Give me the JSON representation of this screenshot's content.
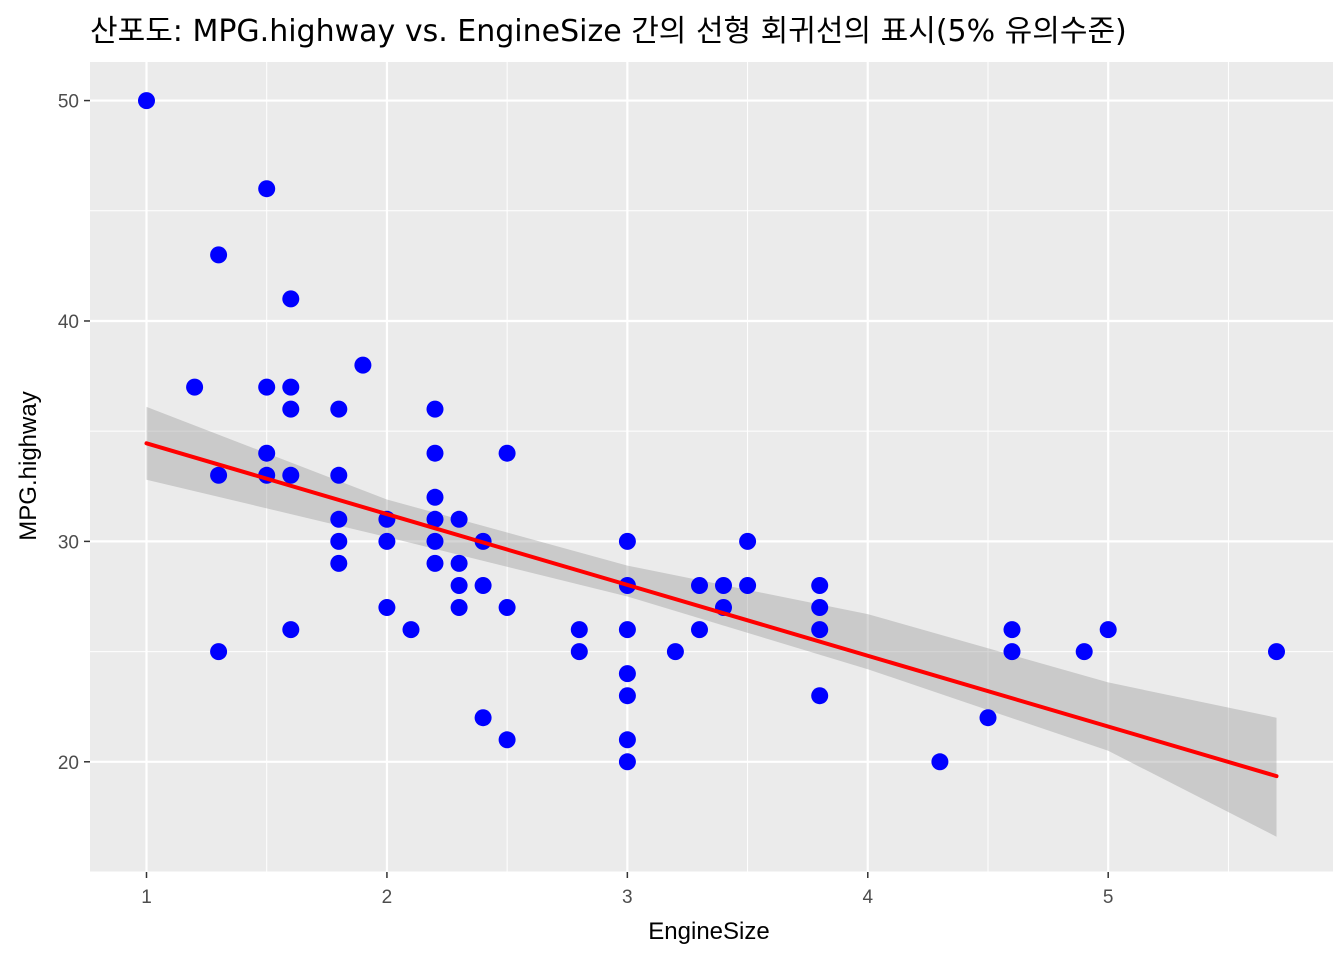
{
  "chart_data": {
    "type": "scatter",
    "title": "산포도: MPG.highway vs. EngineSize 간의 선형 회귀선의 표시(5% 유의수준)",
    "xlabel": "EngineSize",
    "ylabel": "MPG.highway",
    "xlim": [
      0.765,
      5.935
    ],
    "ylim": [
      15,
      51.75
    ],
    "x_ticks": [
      1,
      2,
      3,
      4,
      5
    ],
    "y_ticks": [
      20,
      30,
      40,
      50
    ],
    "grid": true,
    "legend": "none",
    "points": [
      {
        "x": 1.0,
        "y": 50
      },
      {
        "x": 1.5,
        "y": 46
      },
      {
        "x": 1.3,
        "y": 43
      },
      {
        "x": 1.6,
        "y": 41
      },
      {
        "x": 1.9,
        "y": 38
      },
      {
        "x": 1.2,
        "y": 37
      },
      {
        "x": 1.5,
        "y": 37
      },
      {
        "x": 1.6,
        "y": 37
      },
      {
        "x": 1.6,
        "y": 36
      },
      {
        "x": 1.8,
        "y": 36
      },
      {
        "x": 2.2,
        "y": 36
      },
      {
        "x": 1.5,
        "y": 34
      },
      {
        "x": 2.2,
        "y": 34
      },
      {
        "x": 2.5,
        "y": 34
      },
      {
        "x": 1.3,
        "y": 33
      },
      {
        "x": 1.5,
        "y": 33
      },
      {
        "x": 1.6,
        "y": 33
      },
      {
        "x": 1.8,
        "y": 33
      },
      {
        "x": 2.2,
        "y": 32
      },
      {
        "x": 1.8,
        "y": 31
      },
      {
        "x": 2.0,
        "y": 31
      },
      {
        "x": 2.2,
        "y": 31
      },
      {
        "x": 2.3,
        "y": 31
      },
      {
        "x": 1.8,
        "y": 30
      },
      {
        "x": 2.0,
        "y": 30
      },
      {
        "x": 2.2,
        "y": 30
      },
      {
        "x": 2.4,
        "y": 30
      },
      {
        "x": 3.0,
        "y": 30
      },
      {
        "x": 3.5,
        "y": 30
      },
      {
        "x": 1.8,
        "y": 29
      },
      {
        "x": 2.2,
        "y": 29
      },
      {
        "x": 2.3,
        "y": 29
      },
      {
        "x": 2.3,
        "y": 28
      },
      {
        "x": 2.4,
        "y": 28
      },
      {
        "x": 3.0,
        "y": 28
      },
      {
        "x": 3.3,
        "y": 28
      },
      {
        "x": 3.4,
        "y": 28
      },
      {
        "x": 3.5,
        "y": 28
      },
      {
        "x": 3.8,
        "y": 28
      },
      {
        "x": 2.0,
        "y": 27
      },
      {
        "x": 2.3,
        "y": 27
      },
      {
        "x": 2.5,
        "y": 27
      },
      {
        "x": 3.4,
        "y": 27
      },
      {
        "x": 3.8,
        "y": 27
      },
      {
        "x": 1.6,
        "y": 26
      },
      {
        "x": 2.1,
        "y": 26
      },
      {
        "x": 2.8,
        "y": 26
      },
      {
        "x": 3.0,
        "y": 26
      },
      {
        "x": 3.3,
        "y": 26
      },
      {
        "x": 3.8,
        "y": 26
      },
      {
        "x": 4.6,
        "y": 26
      },
      {
        "x": 5.0,
        "y": 26
      },
      {
        "x": 1.3,
        "y": 25
      },
      {
        "x": 2.8,
        "y": 25
      },
      {
        "x": 3.2,
        "y": 25
      },
      {
        "x": 4.6,
        "y": 25
      },
      {
        "x": 4.9,
        "y": 25
      },
      {
        "x": 5.7,
        "y": 25
      },
      {
        "x": 3.0,
        "y": 24
      },
      {
        "x": 3.0,
        "y": 23
      },
      {
        "x": 3.8,
        "y": 23
      },
      {
        "x": 2.4,
        "y": 22
      },
      {
        "x": 4.5,
        "y": 22
      },
      {
        "x": 2.5,
        "y": 21
      },
      {
        "x": 3.0,
        "y": 21
      },
      {
        "x": 3.0,
        "y": 20
      },
      {
        "x": 4.3,
        "y": 20
      }
    ],
    "regression": {
      "method": "lm",
      "x_range": [
        1.0,
        5.7
      ],
      "fit_y": [
        34.45,
        19.35
      ],
      "confidence_level": 0.95,
      "band_x": [
        1.0,
        2.0,
        3.0,
        4.0,
        5.0,
        5.7
      ],
      "band_lower": [
        32.8,
        30.2,
        27.5,
        24.2,
        20.5,
        16.6
      ],
      "band_upper": [
        36.1,
        31.9,
        28.9,
        26.7,
        23.6,
        22.0
      ]
    },
    "colors": {
      "points": "#0000ff",
      "line": "#ff0000",
      "band": "#999999",
      "panel": "#ebebeb",
      "grid": "#ffffff"
    }
  }
}
